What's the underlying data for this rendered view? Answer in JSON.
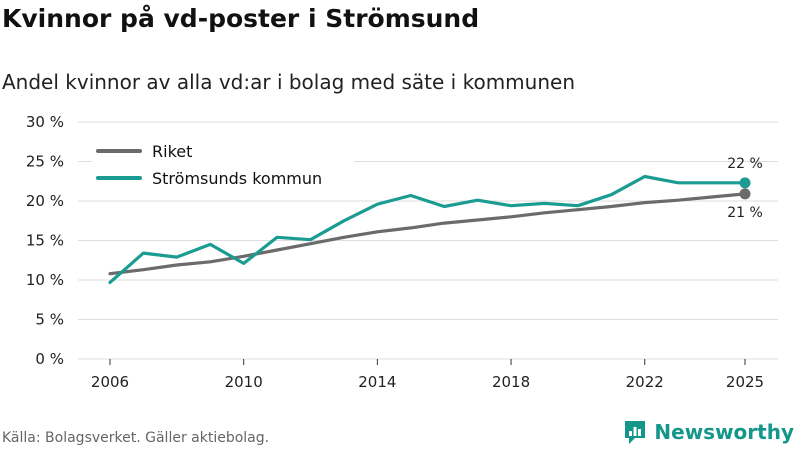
{
  "header": {
    "title": "Kvinnor på vd-poster i Strömsund",
    "subtitle": "Andel kvinnor av alla vd:ar i bolag med säte i kommunen"
  },
  "footer": {
    "source": "Källa: Bolagsverket. Gäller aktiebolag.",
    "brand": "Newsworthy"
  },
  "colors": {
    "riket": "#6b6b6b",
    "kommun": "#1a9c93",
    "brand": "#15968a",
    "grid": "#dddddd"
  },
  "chart_data": {
    "type": "line",
    "title": "Kvinnor på vd-poster i Strömsund",
    "subtitle": "Andel kvinnor av alla vd:ar i bolag med säte i kommunen",
    "xlabel": "",
    "ylabel": "",
    "x": [
      2006,
      2007,
      2008,
      2009,
      2010,
      2011,
      2012,
      2013,
      2014,
      2015,
      2016,
      2017,
      2018,
      2019,
      2020,
      2021,
      2022,
      2023,
      2024,
      2025
    ],
    "xlim": [
      2006,
      2025
    ],
    "xticks": [
      2006,
      2010,
      2014,
      2018,
      2022,
      2025
    ],
    "ylim": [
      0,
      30
    ],
    "yticks": [
      0,
      5,
      10,
      15,
      20,
      25,
      30
    ],
    "ytick_suffix": " %",
    "grid": true,
    "legend_position": "top-left",
    "series": [
      {
        "name": "Riket",
        "key": "riket",
        "values": [
          10.8,
          11.3,
          11.9,
          12.3,
          13.0,
          13.8,
          14.6,
          15.4,
          16.1,
          16.6,
          17.2,
          17.6,
          18.0,
          18.5,
          18.9,
          19.3,
          19.8,
          20.1,
          20.5,
          20.9
        ],
        "end_label": "21 %"
      },
      {
        "name": "Strömsunds kommun",
        "key": "kommun",
        "values": [
          9.7,
          13.4,
          12.9,
          14.5,
          12.1,
          15.4,
          15.1,
          17.5,
          19.6,
          20.7,
          19.3,
          20.1,
          19.4,
          19.7,
          19.4,
          20.8,
          23.1,
          22.3,
          22.3,
          22.3
        ],
        "end_label": "22 %"
      }
    ]
  }
}
